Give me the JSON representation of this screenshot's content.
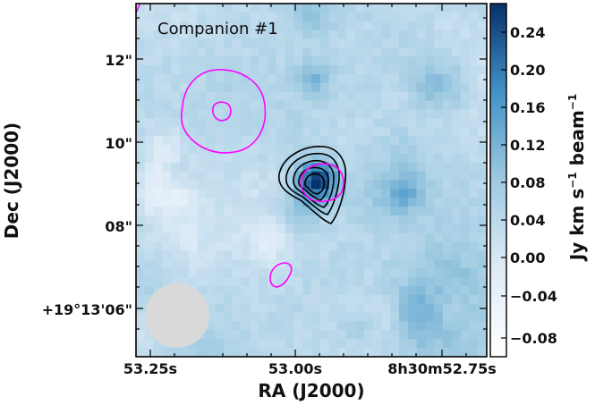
{
  "chart_data": {
    "type": "heatmap",
    "title": "Companion #1",
    "xlabel": "RA (J2000)",
    "ylabel": "Dec (J2000)",
    "x_ticks": [
      "53.25s",
      "53.00s",
      "8h30m52.75s"
    ],
    "y_ticks": [
      "12\"",
      "10\"",
      "08\"",
      "+19°13'06\""
    ],
    "colorbar": {
      "label_main": "Jy km s",
      "label_exp1": "−1",
      "label_mid": " beam",
      "label_exp2": "−1",
      "range": [
        -0.1,
        0.27
      ],
      "ticks": [
        "0.24",
        "0.20",
        "0.16",
        "0.12",
        "0.08",
        "0.04",
        "0.00",
        "−0.04",
        "−0.08"
      ],
      "colormap": [
        "#ffffff",
        "#deebf7",
        "#9ecae1",
        "#4292c6",
        "#08306b"
      ]
    },
    "beam": {
      "shape": "circle",
      "color": "#d9d9d9",
      "position": "bottom-left"
    },
    "contour_colors": {
      "black": "#000000",
      "magenta": "#ff00ff"
    },
    "peak": {
      "value": 0.26,
      "location": "center (RA 52.99s, Dec 09.1\")"
    }
  }
}
